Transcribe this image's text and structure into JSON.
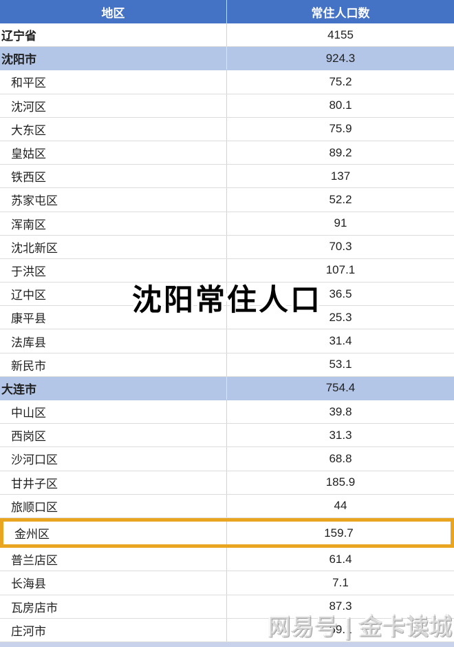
{
  "overlay_title": "沈阳常住人口",
  "watermark": "网易号 | 金卡读城",
  "colors": {
    "header_bg": "#4472C4",
    "header_text": "#FFFFFF",
    "subtotal_row_bg": "#B4C6E7",
    "row_border": "#DCDCDC",
    "highlight_border": "#E9A420",
    "partial_next_row_bg": "#C8D2EA",
    "body_text": "#1F1F1F"
  },
  "table": {
    "columns": [
      "地区",
      "常住人口数"
    ],
    "rows": [
      {
        "region": "辽宁省",
        "value": "4155",
        "style": "province",
        "highlighted": false
      },
      {
        "region": "沈阳市",
        "value": "924.3",
        "style": "city",
        "highlighted": false
      },
      {
        "region": "和平区",
        "value": "75.2",
        "style": "district",
        "highlighted": false
      },
      {
        "region": "沈河区",
        "value": "80.1",
        "style": "district",
        "highlighted": false
      },
      {
        "region": "大东区",
        "value": "75.9",
        "style": "district",
        "highlighted": false
      },
      {
        "region": "皇姑区",
        "value": "89.2",
        "style": "district",
        "highlighted": false
      },
      {
        "region": "铁西区",
        "value": "137",
        "style": "district",
        "highlighted": false
      },
      {
        "region": "苏家屯区",
        "value": "52.2",
        "style": "district",
        "highlighted": false
      },
      {
        "region": "浑南区",
        "value": "91",
        "style": "district",
        "highlighted": false
      },
      {
        "region": "沈北新区",
        "value": "70.3",
        "style": "district",
        "highlighted": false
      },
      {
        "region": "于洪区",
        "value": "107.1",
        "style": "district",
        "highlighted": false
      },
      {
        "region": "辽中区",
        "value": "36.5",
        "style": "district",
        "highlighted": false
      },
      {
        "region": "康平县",
        "value": "25.3",
        "style": "district",
        "highlighted": false
      },
      {
        "region": "法库县",
        "value": "31.4",
        "style": "district",
        "highlighted": false
      },
      {
        "region": "新民市",
        "value": "53.1",
        "style": "district",
        "highlighted": false
      },
      {
        "region": "大连市",
        "value": "754.4",
        "style": "city",
        "highlighted": false
      },
      {
        "region": "中山区",
        "value": "39.8",
        "style": "district",
        "highlighted": false
      },
      {
        "region": "西岗区",
        "value": "31.3",
        "style": "district",
        "highlighted": false
      },
      {
        "region": "沙河口区",
        "value": "68.8",
        "style": "district",
        "highlighted": false
      },
      {
        "region": "甘井子区",
        "value": "185.9",
        "style": "district",
        "highlighted": false
      },
      {
        "region": "旅顺口区",
        "value": "44",
        "style": "district",
        "highlighted": false
      },
      {
        "region": "金州区",
        "value": "159.7",
        "style": "district",
        "highlighted": true
      },
      {
        "region": "普兰店区",
        "value": "61.4",
        "style": "district",
        "highlighted": false
      },
      {
        "region": "长海县",
        "value": "7.1",
        "style": "district",
        "highlighted": false
      },
      {
        "region": "瓦房店市",
        "value": "87.3",
        "style": "district",
        "highlighted": false
      },
      {
        "region": "庄河市",
        "value": "69.1",
        "style": "district",
        "highlighted": false
      }
    ]
  },
  "chart_data": {
    "type": "table",
    "title": "沈阳常住人口",
    "columns": [
      "地区",
      "常住人口数"
    ],
    "rows": [
      [
        "辽宁省",
        4155
      ],
      [
        "沈阳市",
        924.3
      ],
      [
        "和平区",
        75.2
      ],
      [
        "沈河区",
        80.1
      ],
      [
        "大东区",
        75.9
      ],
      [
        "皇姑区",
        89.2
      ],
      [
        "铁西区",
        137
      ],
      [
        "苏家屯区",
        52.2
      ],
      [
        "浑南区",
        91
      ],
      [
        "沈北新区",
        70.3
      ],
      [
        "于洪区",
        107.1
      ],
      [
        "辽中区",
        36.5
      ],
      [
        "康平县",
        25.3
      ],
      [
        "法库县",
        31.4
      ],
      [
        "新民市",
        53.1
      ],
      [
        "大连市",
        754.4
      ],
      [
        "中山区",
        39.8
      ],
      [
        "西岗区",
        31.3
      ],
      [
        "沙河口区",
        68.8
      ],
      [
        "甘井子区",
        185.9
      ],
      [
        "旅顺口区",
        44
      ],
      [
        "金州区",
        159.7
      ],
      [
        "普兰店区",
        61.4
      ],
      [
        "长海县",
        7.1
      ],
      [
        "瓦房店市",
        87.3
      ],
      [
        "庄河市",
        69.1
      ]
    ],
    "highlighted_row": "金州区",
    "subtotal_rows": [
      "沈阳市",
      "大连市"
    ]
  }
}
